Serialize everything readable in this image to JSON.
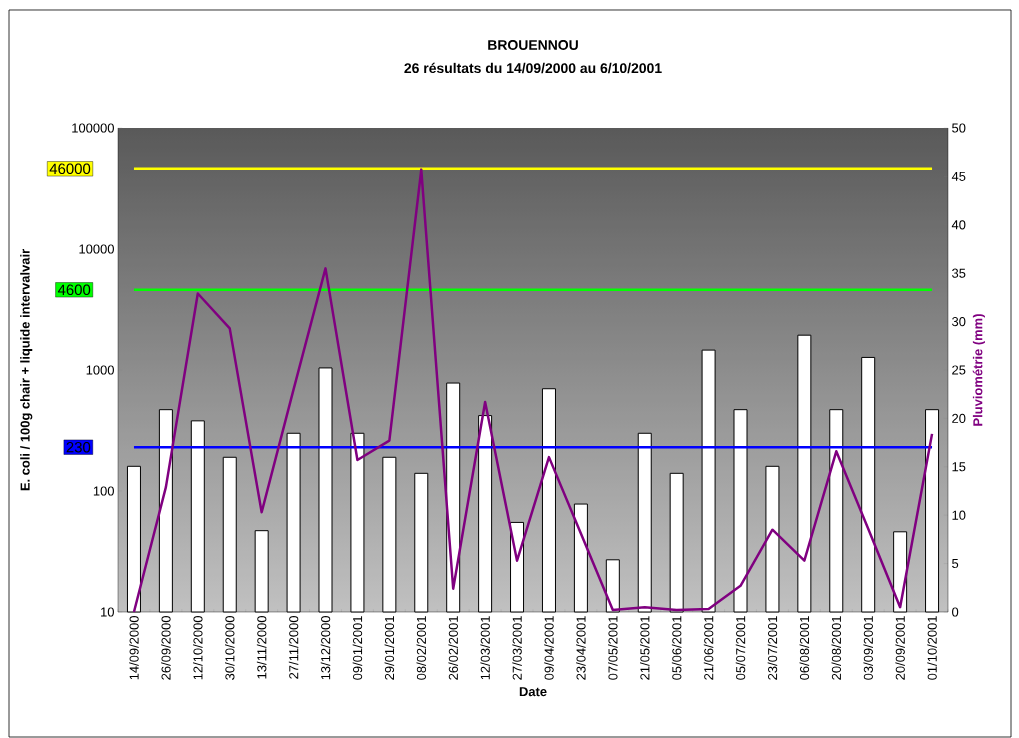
{
  "chart_data": {
    "type": "bar",
    "title": "BROUENNOU",
    "subtitle": "26 résultats du 14/09/2000 au 6/10/2001",
    "xlabel": "Date",
    "ylabel": "E. coli / 100g chair + liquide intervalvair",
    "y2label": "Pluviométrie (mm)",
    "categories": [
      "14/09/2000",
      "26/09/2000",
      "12/10/2000",
      "30/10/2000",
      "13/11/2000",
      "27/11/2000",
      "13/12/2000",
      "09/01/2001",
      "29/01/2001",
      "08/02/2001",
      "26/02/2001",
      "12/03/2001",
      "27/03/2001",
      "09/04/2001",
      "23/04/2001",
      "07/05/2001",
      "21/05/2001",
      "05/06/2001",
      "21/06/2001",
      "05/07/2001",
      "23/07/2001",
      "06/08/2001",
      "20/08/2001",
      "03/09/2001",
      "20/09/2001",
      "01/10/2001"
    ],
    "series": [
      {
        "color": "#ffffff",
        "values": [
          160,
          470,
          380,
          190,
          47,
          300,
          1040,
          300,
          190,
          140,
          780,
          420,
          55,
          700,
          78,
          27,
          300,
          140,
          1460,
          470,
          160,
          1940,
          470,
          1270,
          46,
          470
        ]
      },
      {
        "type": "line",
        "axis": "y2",
        "color": "#800080",
        "values": [
          0,
          12.9,
          32.9,
          29.3,
          10.3,
          23.0,
          35.5,
          15.7,
          17.7,
          45.7,
          2.4,
          21.7,
          5.3,
          16.0,
          8.1,
          0.2,
          0.5,
          0.2,
          0.3,
          2.7,
          8.5,
          5.3,
          16.6,
          8.6,
          0.5,
          18.4
        ]
      }
    ],
    "log": "y",
    "ylim": [
      10,
      100000
    ],
    "yticks": [
      10,
      100,
      1000,
      10000,
      100000
    ],
    "y2lim": [
      0,
      50
    ],
    "y2ticks": [
      0,
      5,
      10,
      15,
      20,
      25,
      30,
      35,
      40,
      45,
      50
    ],
    "ref_lines": [
      {
        "axis": "y",
        "value": 46000,
        "label": "46000",
        "color": "#ffff00"
      },
      {
        "axis": "y",
        "value": 4600,
        "label": "4600",
        "color": "#00ff00"
      },
      {
        "axis": "y",
        "value": 230,
        "label": "230",
        "color": "#0000ff"
      }
    ],
    "grid": false
  }
}
